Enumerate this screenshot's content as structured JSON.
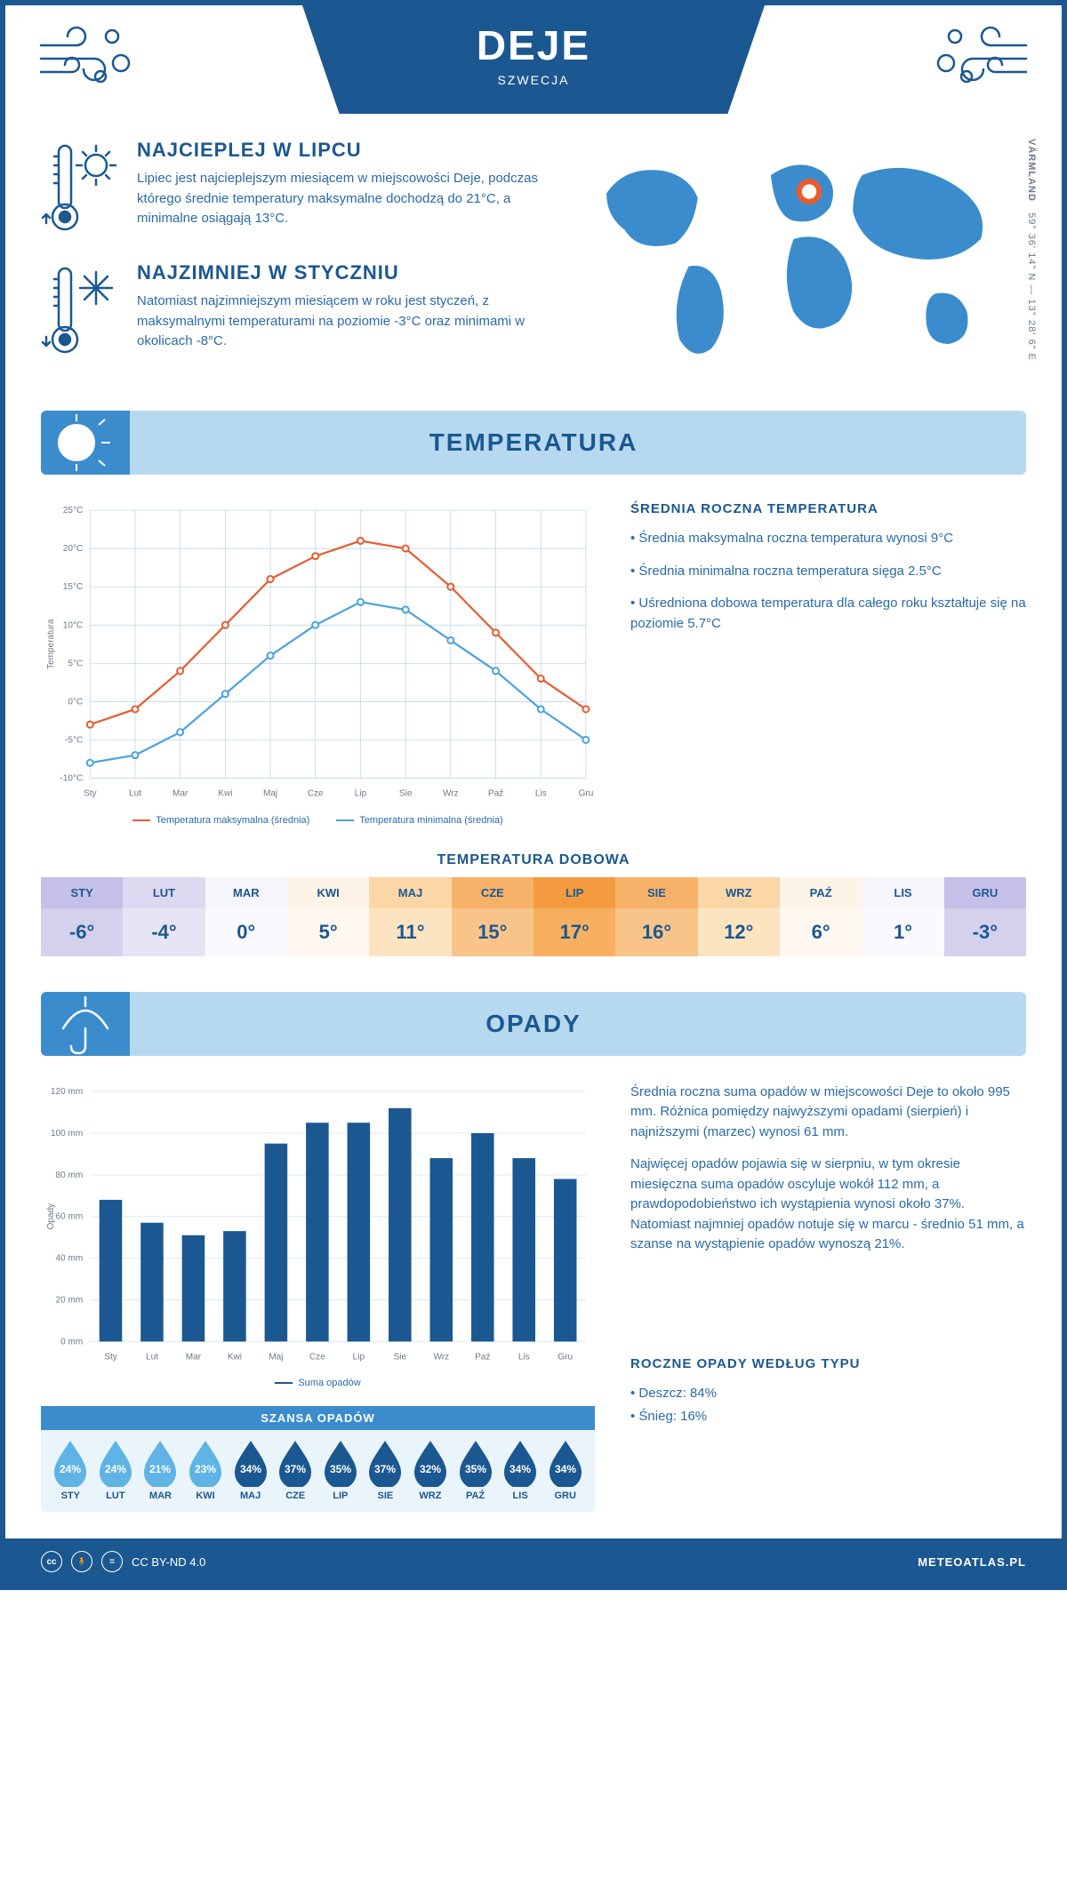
{
  "header": {
    "title": "DEJE",
    "subtitle": "SZWECJA"
  },
  "coords": {
    "lat": "59° 36' 14\" N",
    "lon": "13° 28' 6\" E",
    "region": "VÄRMLAND"
  },
  "warmest": {
    "heading": "NAJCIEPLEJ W LIPCU",
    "text": "Lipiec jest najcieplejszym miesiącem w miejscowości Deje, podczas którego średnie temperatury maksymalne dochodzą do 21°C, a minimalne osiągają 13°C."
  },
  "coldest": {
    "heading": "NAJZIMNIEJ W STYCZNIU",
    "text": "Natomiast najzimniejszym miesiącem w roku jest styczeń, z maksymalnymi temperaturami na poziomie -3°C oraz minimami w okolicach -8°C."
  },
  "temp_section_title": "TEMPERATURA",
  "temp_side": {
    "heading": "ŚREDNIA ROCZNA TEMPERATURA",
    "b1": "• Średnia maksymalna roczna temperatura wynosi 9°C",
    "b2": "• Średnia minimalna roczna temperatura sięga 2.5°C",
    "b3": "• Uśredniona dobowa temperatura dla całego roku kształtuje się na poziomie 5.7°C"
  },
  "temp_chart": {
    "type": "line",
    "months": [
      "Sty",
      "Lut",
      "Mar",
      "Kwi",
      "Maj",
      "Cze",
      "Lip",
      "Sie",
      "Wrz",
      "Paź",
      "Lis",
      "Gru"
    ],
    "max_series": [
      -3,
      -1,
      4,
      10,
      16,
      19,
      21,
      20,
      15,
      9,
      3,
      -1
    ],
    "min_series": [
      -8,
      -7,
      -4,
      1,
      6,
      10,
      13,
      12,
      8,
      4,
      -1,
      -5
    ],
    "max_color": "#e85c2e",
    "min_color": "#4aa3df",
    "grid_color": "#b7d2e6",
    "ylim": [
      -10,
      25
    ],
    "ytick_step": 5,
    "ylabel": "Temperatura",
    "legend_max": "Temperatura maksymalna (średnia)",
    "legend_min": "Temperatura minimalna (średnia)"
  },
  "daily_temp_title": "TEMPERATURA DOBOWA",
  "daily_temp": {
    "months": [
      "STY",
      "LUT",
      "MAR",
      "KWI",
      "MAJ",
      "CZE",
      "LIP",
      "SIE",
      "WRZ",
      "PAŹ",
      "LIS",
      "GRU"
    ],
    "values": [
      "-6°",
      "-4°",
      "0°",
      "5°",
      "11°",
      "15°",
      "17°",
      "16°",
      "12°",
      "6°",
      "1°",
      "-3°"
    ],
    "head_colors": [
      "#c5c0e8",
      "#dcd9f0",
      "#f6f5fb",
      "#fdf3e7",
      "#fbd7a8",
      "#f7b26a",
      "#f49b3f",
      "#f7b26a",
      "#fbd7a8",
      "#fdf3e7",
      "#f6f5fb",
      "#c5c0e8"
    ],
    "val_colors": [
      "#d4d1ed",
      "#e7e5f4",
      "#faf9fd",
      "#fef8f0",
      "#fde4c1",
      "#f9c48a",
      "#f7b060",
      "#f9c48a",
      "#fde4c1",
      "#fef8f0",
      "#faf9fd",
      "#d4d1ed"
    ]
  },
  "precip_section_title": "OPADY",
  "precip_chart": {
    "type": "bar",
    "months": [
      "Sty",
      "Lut",
      "Mar",
      "Kwi",
      "Maj",
      "Cze",
      "Lip",
      "Sie",
      "Wrz",
      "Paź",
      "Lis",
      "Gru"
    ],
    "values_mm": [
      68,
      57,
      51,
      53,
      95,
      105,
      105,
      112,
      88,
      100,
      88,
      78
    ],
    "bar_color": "#1b5891",
    "grid_color": "#dfe9f1",
    "ylim": [
      0,
      120
    ],
    "ytick_step": 20,
    "ylabel": "Opady",
    "legend": "Suma opadów"
  },
  "precip_side": {
    "p1": "Średnia roczna suma opadów w miejscowości Deje to około 995 mm. Różnica pomiędzy najwyższymi opadami (sierpień) i najniższymi (marzec) wynosi 61 mm.",
    "p2": "Najwięcej opadów pojawia się w sierpniu, w tym okresie miesięczna suma opadów oscyluje wokół 112 mm, a prawdopodobieństwo ich wystąpienia wynosi około 37%. Natomiast najmniej opadów notuje się w marcu - średnio 51 mm, a szanse na wystąpienie opadów wynoszą 21%."
  },
  "chance_title": "SZANSA OPADÓW",
  "chance": {
    "months": [
      "STY",
      "LUT",
      "MAR",
      "KWI",
      "MAJ",
      "CZE",
      "LIP",
      "SIE",
      "WRZ",
      "PAŹ",
      "LIS",
      "GRU"
    ],
    "values": [
      "24%",
      "24%",
      "21%",
      "23%",
      "34%",
      "37%",
      "35%",
      "37%",
      "32%",
      "35%",
      "34%",
      "34%"
    ],
    "colors": [
      "#5fb4e5",
      "#5fb4e5",
      "#5fb4e5",
      "#5fb4e5",
      "#1b5891",
      "#1b5891",
      "#1b5891",
      "#1b5891",
      "#1b5891",
      "#1b5891",
      "#1b5891",
      "#1b5891"
    ]
  },
  "precip_type": {
    "heading": "ROCZNE OPADY WEDŁUG TYPU",
    "rain": "• Deszcz: 84%",
    "snow": "• Śnieg: 16%"
  },
  "footer": {
    "license": "CC BY-ND 4.0",
    "brand": "METEOATLAS.PL"
  }
}
